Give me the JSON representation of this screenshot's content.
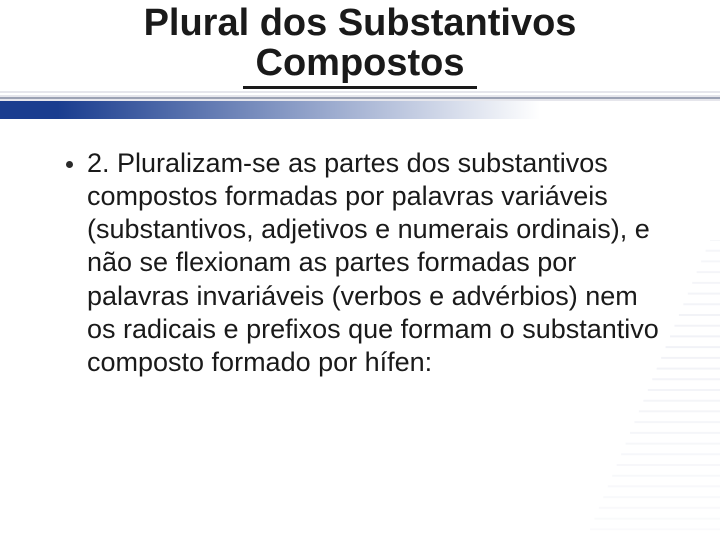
{
  "colors": {
    "title": "#1a1a1a",
    "underline": "#1a1a1a",
    "body_text": "#1a1a1a",
    "bullet": "#2a2a2a",
    "band_light": "#e6e6ec",
    "band_dark": "#9ca2b4",
    "grad_from": "#1a3d8f",
    "grad_to": "#ffffff",
    "right_stripe": "#eceef4",
    "background": "#ffffff"
  },
  "typography": {
    "title_fontsize": 38,
    "title_weight": "bold",
    "body_fontsize": 27,
    "body_weight": "normal"
  },
  "layout": {
    "underline_width": 234,
    "underline_height": 3,
    "bullet_size": 7,
    "right_stripe_count": 28,
    "right_stripe_gap": 4
  },
  "title": {
    "line1": "Plural dos Substantivos",
    "line2": "Compostos"
  },
  "content": {
    "bullets": [
      {
        "text": "2. Pluralizam-se as partes dos substantivos compostos formadas por palavras variáveis (substantivos, adjetivos e numerais ordinais), e não se flexionam as partes formadas por palavras invariáveis (verbos e advérbios) nem os radicais e prefixos que formam o substantivo composto formado por hífen:"
      }
    ]
  }
}
